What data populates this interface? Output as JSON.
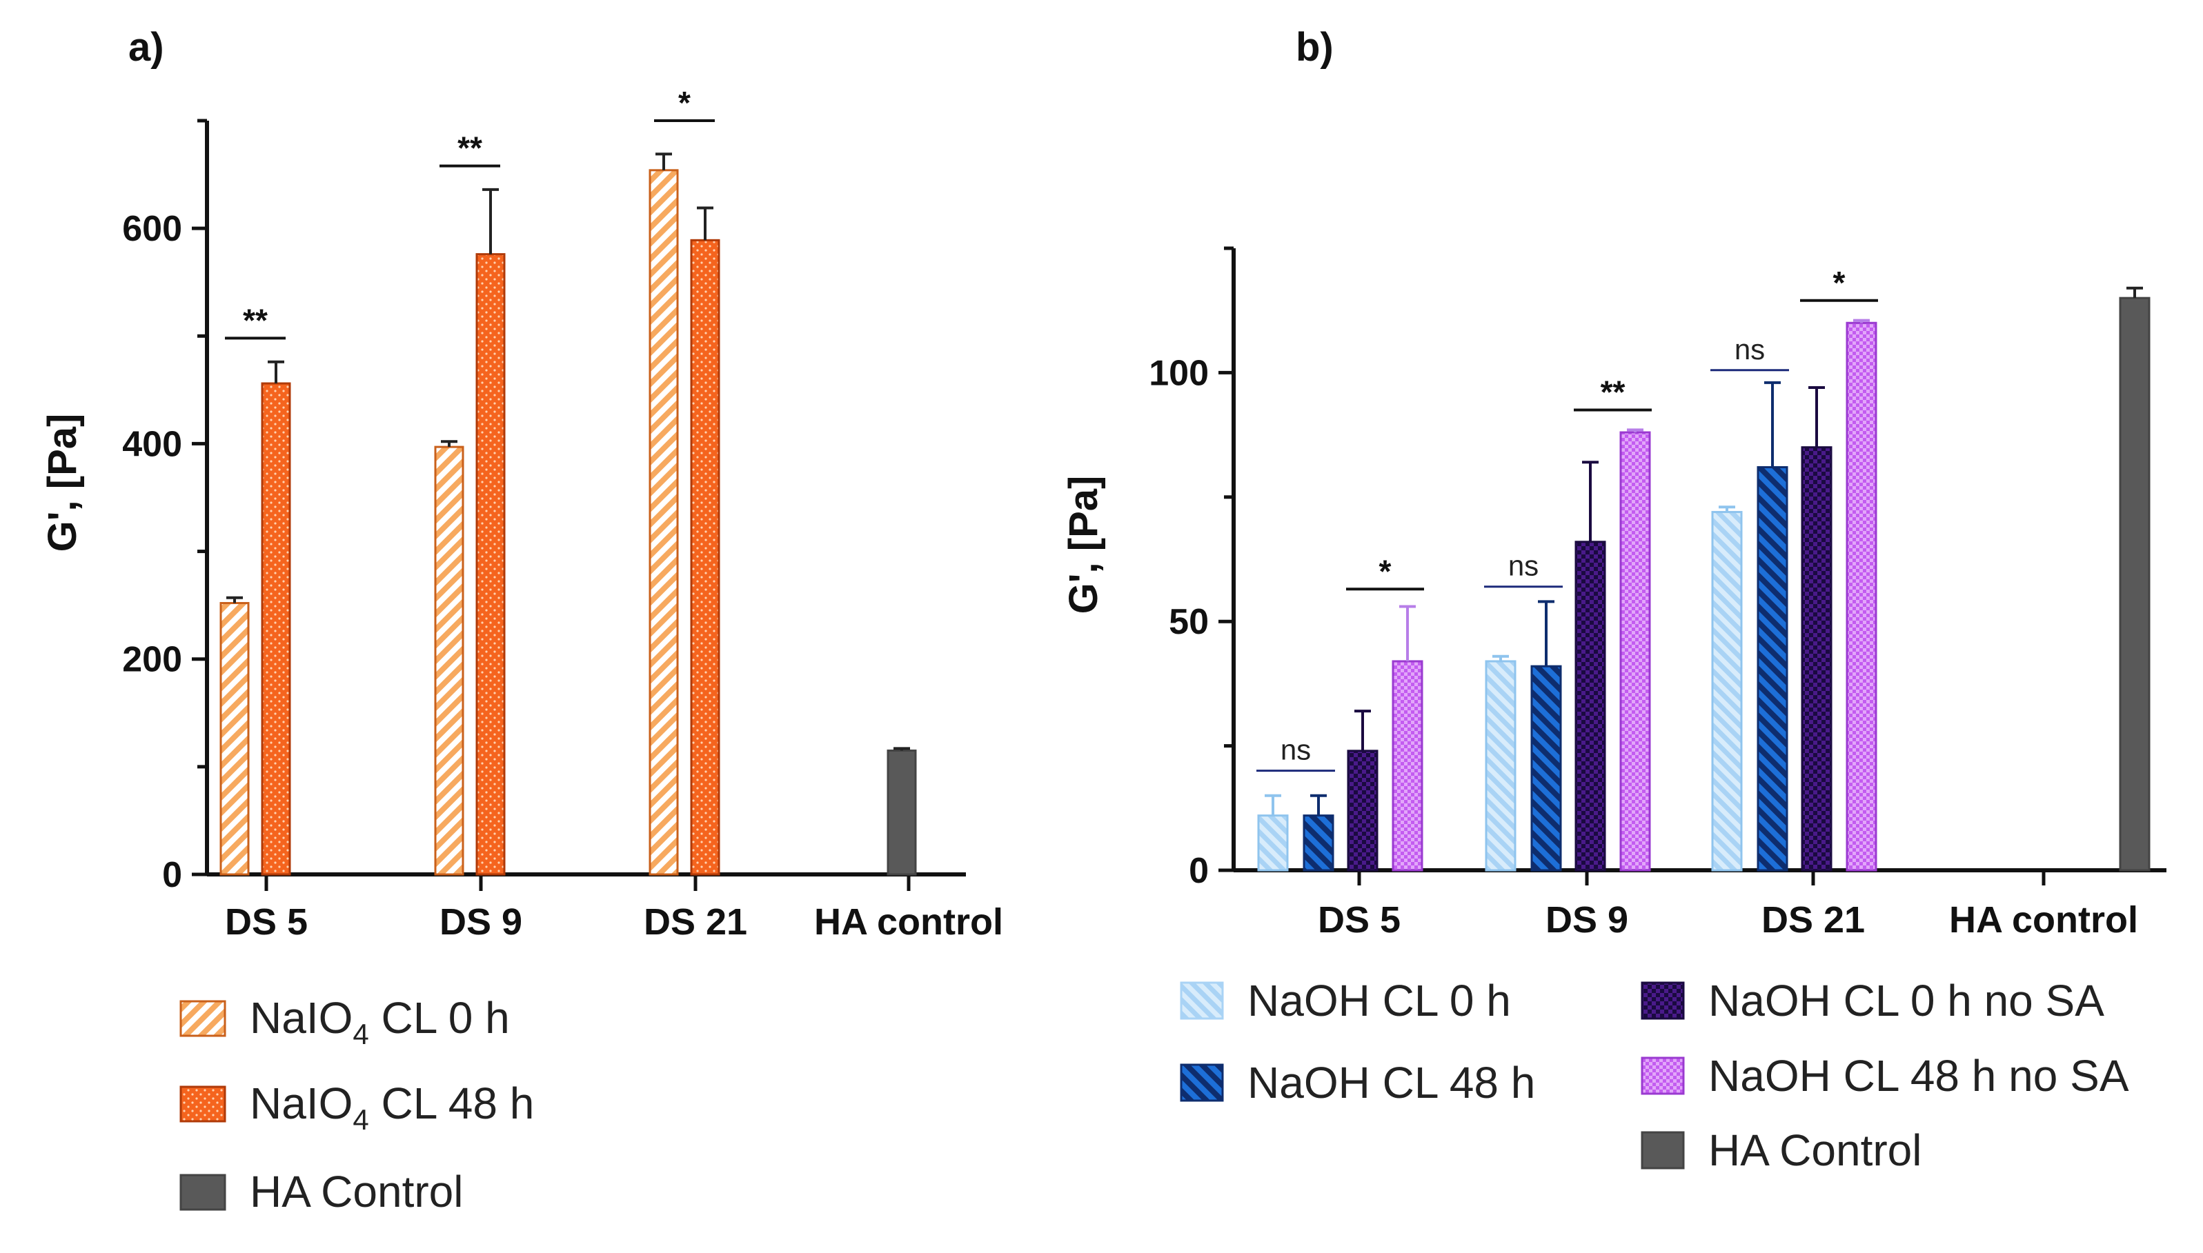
{
  "panels": {
    "a": {
      "label": "a)"
    },
    "b": {
      "label": "b)"
    }
  },
  "colors": {
    "naio4_0h": "#f7a95f",
    "naio4_48h": "#f5641e",
    "naoh_0h": "#a9d3f5",
    "naoh_48h": "#1d6fd8",
    "naoh_0h_nosa": "#4a1a8a",
    "naoh_48h_nosa": "#c35cf0",
    "ha_control": "#595959"
  },
  "chart_data": [
    {
      "id": "a",
      "type": "bar",
      "title": "",
      "xlabel": "",
      "ylabel": "G', [Pa]",
      "ylim": [
        0,
        700
      ],
      "yticks": [
        0,
        200,
        400,
        600
      ],
      "categories": [
        "DS 5",
        "DS 9",
        "DS 21",
        "HA control"
      ],
      "series": [
        {
          "name": "NaIO4 CL 0 h",
          "values": [
            252,
            397,
            654,
            null
          ],
          "errors": [
            5,
            5,
            15,
            null
          ]
        },
        {
          "name": "NaIO4 CL 48 h",
          "values": [
            456,
            576,
            589,
            null
          ],
          "errors": [
            20,
            60,
            30,
            null
          ]
        },
        {
          "name": "HA Control",
          "values": [
            null,
            null,
            null,
            115
          ],
          "errors": [
            null,
            null,
            null,
            2
          ]
        }
      ],
      "significance": [
        {
          "category": "DS 5",
          "text": "**",
          "y": 498
        },
        {
          "category": "DS 9",
          "text": "**",
          "y": 658
        },
        {
          "category": "DS 21",
          "text": "*",
          "y": 700
        }
      ],
      "legend": [
        {
          "base": "NaIO",
          "sub": "4",
          "rest": " CL 0 h"
        },
        {
          "base": "NaIO",
          "sub": "4",
          "rest": " CL 48 h"
        },
        {
          "base": "HA Control",
          "sub": "",
          "rest": ""
        }
      ]
    },
    {
      "id": "b",
      "type": "bar",
      "title": "",
      "xlabel": "",
      "ylabel": "G', [Pa]",
      "ylim": [
        0,
        125
      ],
      "yticks": [
        0,
        50,
        100
      ],
      "categories": [
        "DS 5",
        "DS 9",
        "DS 21",
        "HA control"
      ],
      "series": [
        {
          "name": "NaOH CL 0 h",
          "values": [
            11,
            42,
            72,
            null
          ],
          "errors": [
            4,
            1,
            1,
            null
          ]
        },
        {
          "name": "NaOH CL 48 h",
          "values": [
            11,
            41,
            81,
            null
          ],
          "errors": [
            4,
            13,
            17,
            null
          ]
        },
        {
          "name": "NaOH CL 0 h no SA",
          "values": [
            24,
            66,
            85,
            null
          ],
          "errors": [
            8,
            16,
            12,
            null
          ]
        },
        {
          "name": "NaOH CL 48 h no SA",
          "values": [
            42,
            88,
            110,
            null
          ],
          "errors": [
            11,
            0.5,
            0.5,
            null
          ]
        },
        {
          "name": "HA Control",
          "values": [
            null,
            null,
            null,
            115
          ],
          "errors": [
            null,
            null,
            null,
            2
          ]
        }
      ],
      "significance": [
        {
          "category": "DS 5",
          "pair": [
            0,
            1
          ],
          "text": "ns",
          "y": 20
        },
        {
          "category": "DS 5",
          "pair": [
            2,
            3
          ],
          "text": "*",
          "y": 56.5
        },
        {
          "category": "DS 9",
          "pair": [
            0,
            1
          ],
          "text": "ns",
          "y": 57
        },
        {
          "category": "DS 9",
          "pair": [
            2,
            3
          ],
          "text": "**",
          "y": 92.5
        },
        {
          "category": "DS 21",
          "pair": [
            0,
            1
          ],
          "text": "ns",
          "y": 100.5
        },
        {
          "category": "DS 21",
          "pair": [
            2,
            3
          ],
          "text": "*",
          "y": 114.5
        }
      ],
      "legend": [
        {
          "text": "NaOH CL 0 h"
        },
        {
          "text": "NaOH CL 48 h"
        },
        {
          "text": "NaOH CL 0 h no SA"
        },
        {
          "text": "NaOH CL 48 h no SA"
        },
        {
          "text": "HA Control"
        }
      ]
    }
  ]
}
